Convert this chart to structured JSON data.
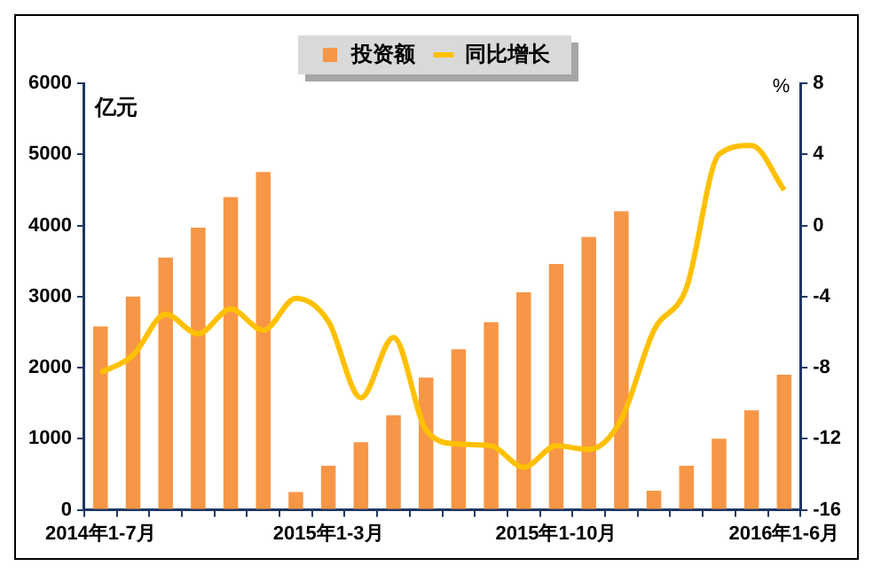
{
  "chart_data": {
    "type": "bar",
    "ylabel": "亿元",
    "y2label": "%",
    "categories": [
      "2014年1-7月",
      null,
      null,
      null,
      null,
      null,
      null,
      "2015年1-3月",
      null,
      null,
      null,
      null,
      null,
      null,
      "2015年1-10月",
      null,
      null,
      null,
      null,
      null,
      null,
      "2016年1-6月"
    ],
    "series": [
      {
        "name": "投资额",
        "color": "#f79646",
        "values": [
          2580,
          3000,
          3550,
          3970,
          4400,
          4750,
          250,
          620,
          950,
          1330,
          1860,
          2260,
          2640,
          3060,
          3460,
          3840,
          4200,
          270,
          620,
          1000,
          1400,
          1900
        ]
      },
      {
        "name": "同比增长",
        "type": "line",
        "axis": "y2",
        "color": "#ffc000",
        "values": [
          -8.3,
          -7.3,
          -5.0,
          -6.1,
          -4.7,
          -5.9,
          -4.1,
          -5.4,
          -9.7,
          -6.3,
          -11.5,
          -12.3,
          -12.4,
          -13.6,
          -12.4,
          -12.6,
          -10.9,
          -5.9,
          -3.5,
          4.0,
          4.5,
          2.0
        ]
      }
    ],
    "ylim": [
      0,
      6000
    ],
    "yticks": [
      0,
      1000,
      2000,
      3000,
      4000,
      5000,
      6000
    ],
    "y2lim": [
      -16,
      8
    ],
    "y2ticks": [
      -16,
      -12,
      -8,
      -4,
      0,
      4,
      8
    ],
    "grid": false,
    "legend": "top",
    "marker": "none"
  }
}
